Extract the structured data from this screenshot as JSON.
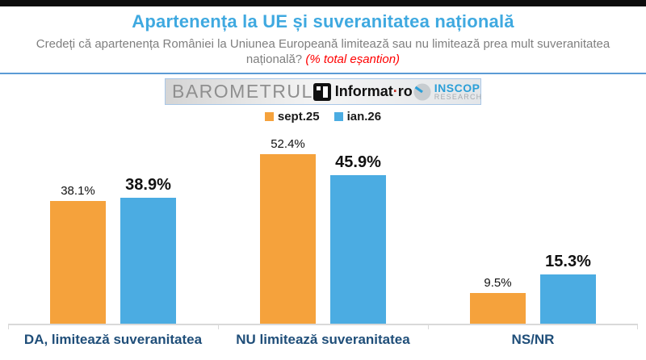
{
  "header": {
    "title": "Apartenența la UE și suveranitatea națională",
    "subtitle": "Credeți că apartenența României la Uniunea Europeană limitează sau nu limitează prea mult suveranitatea națională?",
    "subtitle_note": "(% total eșantion)",
    "title_color": "#3FA9E0",
    "divider_color": "#5B9BD5"
  },
  "branding": {
    "barometrul": "BAROMETRUL",
    "informat_name": "Informat",
    "informat_dot": "·",
    "informat_tld": "ro",
    "inscop_line1": "INSCOP",
    "inscop_line2": "RESEARCH"
  },
  "legend": [
    {
      "label": "sept.25",
      "color": "#F5A23C"
    },
    {
      "label": "ian.26",
      "color": "#4BACE2"
    }
  ],
  "chart_data": {
    "type": "bar",
    "title": "Apartenența la UE și suveranitatea națională",
    "categories": [
      "DA, limitează suveranitatea",
      "NU limitează suveranitatea",
      "NS/NR"
    ],
    "series": [
      {
        "name": "sept.25",
        "color": "#F5A23C",
        "values": [
          38.1,
          52.4,
          9.5
        ]
      },
      {
        "name": "ian.26",
        "color": "#4BACE2",
        "values": [
          38.9,
          45.9,
          15.3
        ]
      }
    ],
    "value_suffix": "%",
    "xlabel": "",
    "ylabel": "",
    "ylim": [
      0,
      60
    ],
    "grid": false,
    "legend_position": "top"
  }
}
